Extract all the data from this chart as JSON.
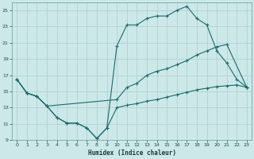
{
  "bg_color": "#cce8e8",
  "grid_color": "#aacfcf",
  "line_color": "#1a6b6b",
  "xlabel": "Humidex (Indice chaleur)",
  "xlim": [
    -0.5,
    23.5
  ],
  "ylim": [
    9,
    26
  ],
  "yticks": [
    9,
    11,
    13,
    15,
    17,
    19,
    21,
    23,
    25
  ],
  "xticks": [
    0,
    1,
    2,
    3,
    4,
    5,
    6,
    7,
    8,
    9,
    10,
    11,
    12,
    13,
    14,
    15,
    16,
    17,
    18,
    19,
    20,
    21,
    22,
    23
  ],
  "series1_x": [
    0,
    1,
    2,
    3,
    4,
    5,
    6,
    7,
    8,
    9,
    10,
    11,
    12,
    13,
    14,
    15,
    16,
    17,
    18,
    19,
    20,
    21,
    22,
    23
  ],
  "series1_y": [
    16.5,
    14.8,
    14.4,
    13.2,
    11.8,
    11.1,
    11.1,
    10.5,
    9.2,
    10.5,
    20.6,
    23.2,
    23.2,
    24.0,
    24.3,
    24.3,
    25.0,
    25.5,
    24.0,
    23.2,
    20.0,
    18.5,
    16.5,
    15.5
  ],
  "series2_x": [
    0,
    1,
    2,
    3,
    10,
    11,
    12,
    13,
    14,
    15,
    16,
    17,
    18,
    19,
    20,
    21,
    23
  ],
  "series2_y": [
    16.5,
    14.8,
    14.4,
    13.2,
    14.0,
    15.5,
    16.0,
    17.0,
    17.5,
    17.8,
    18.3,
    18.8,
    19.5,
    20.0,
    20.5,
    20.8,
    15.5
  ],
  "series3_x": [
    0,
    1,
    2,
    3,
    4,
    5,
    6,
    7,
    8,
    9,
    10,
    11,
    12,
    13,
    14,
    15,
    16,
    17,
    18,
    19,
    20,
    21,
    22,
    23
  ],
  "series3_y": [
    16.5,
    14.8,
    14.4,
    13.2,
    11.8,
    11.1,
    11.1,
    10.5,
    9.2,
    10.5,
    13.0,
    13.3,
    13.5,
    13.8,
    14.0,
    14.3,
    14.6,
    14.9,
    15.2,
    15.4,
    15.6,
    15.7,
    15.8,
    15.5
  ]
}
